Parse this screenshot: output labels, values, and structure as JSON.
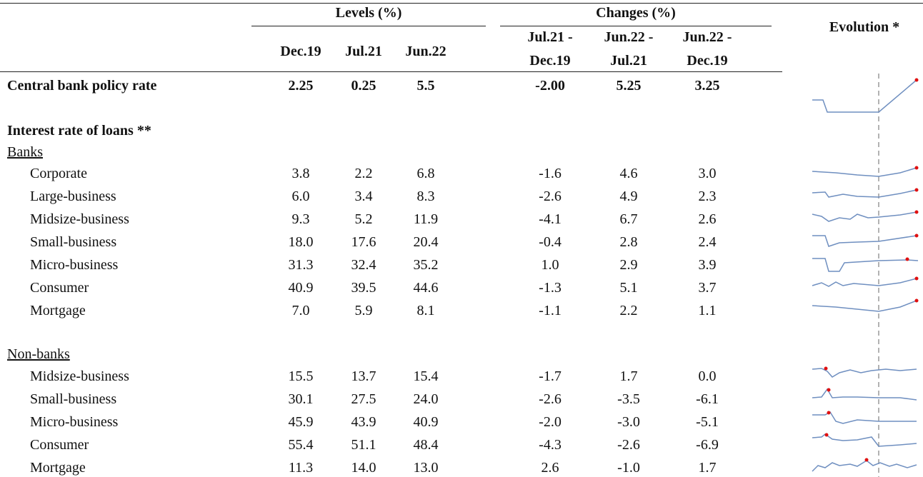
{
  "header": {
    "groups": [
      "Levels (%)",
      "Changes (%)",
      "Evolution *"
    ],
    "columns": [
      [
        "Dec.19"
      ],
      [
        "Jul.21"
      ],
      [
        "Jun.22"
      ],
      [
        "Jul.21 -",
        "Dec.19"
      ],
      [
        "Jun.22 -",
        "Jul.21"
      ],
      [
        "Jun.22 -",
        "Dec.19"
      ]
    ]
  },
  "policy_row": {
    "label": "Central bank policy rate",
    "values": [
      "2.25",
      "0.25",
      "5.5",
      "-2.00",
      "5.25",
      "3.25"
    ]
  },
  "section_title": "Interest rate of loans **",
  "banks": {
    "title": "Banks",
    "rows": [
      {
        "label": "Corporate",
        "values": [
          "3.8",
          "2.2",
          "6.8",
          "-1.6",
          "4.6",
          "3.0"
        ]
      },
      {
        "label": "Large-business",
        "values": [
          "6.0",
          "3.4",
          "8.3",
          "-2.6",
          "4.9",
          "2.3"
        ]
      },
      {
        "label": "Midsize-business",
        "values": [
          "9.3",
          "5.2",
          "11.9",
          "-4.1",
          "6.7",
          "2.6"
        ]
      },
      {
        "label": "Small-business",
        "values": [
          "18.0",
          "17.6",
          "20.4",
          "-0.4",
          "2.8",
          "2.4"
        ]
      },
      {
        "label": "Micro-business",
        "values": [
          "31.3",
          "32.4",
          "35.2",
          "1.0",
          "2.9",
          "3.9"
        ]
      },
      {
        "label": "Consumer",
        "values": [
          "40.9",
          "39.5",
          "44.6",
          "-1.3",
          "5.1",
          "3.7"
        ]
      },
      {
        "label": "Mortgage",
        "values": [
          "7.0",
          "5.9",
          "8.1",
          "-1.1",
          "2.2",
          "1.1"
        ]
      }
    ]
  },
  "non_banks": {
    "title": "Non-banks",
    "rows": [
      {
        "label": "Midsize-business",
        "values": [
          "15.5",
          "13.7",
          "15.4",
          "-1.7",
          "1.7",
          "0.0"
        ]
      },
      {
        "label": "Small-business",
        "values": [
          "30.1",
          "27.5",
          "24.0",
          "-2.6",
          "-3.5",
          "-6.1"
        ]
      },
      {
        "label": "Micro-business",
        "values": [
          "45.9",
          "43.9",
          "40.9",
          "-2.0",
          "-3.0",
          "-5.1"
        ]
      },
      {
        "label": "Consumer",
        "values": [
          "55.4",
          "51.1",
          "48.4",
          "-4.3",
          "-2.6",
          "-6.9"
        ]
      },
      {
        "label": "Mortgage",
        "values": [
          "11.3",
          "14.0",
          "13.0",
          "2.6",
          "-1.0",
          "1.7"
        ]
      }
    ]
  }
}
